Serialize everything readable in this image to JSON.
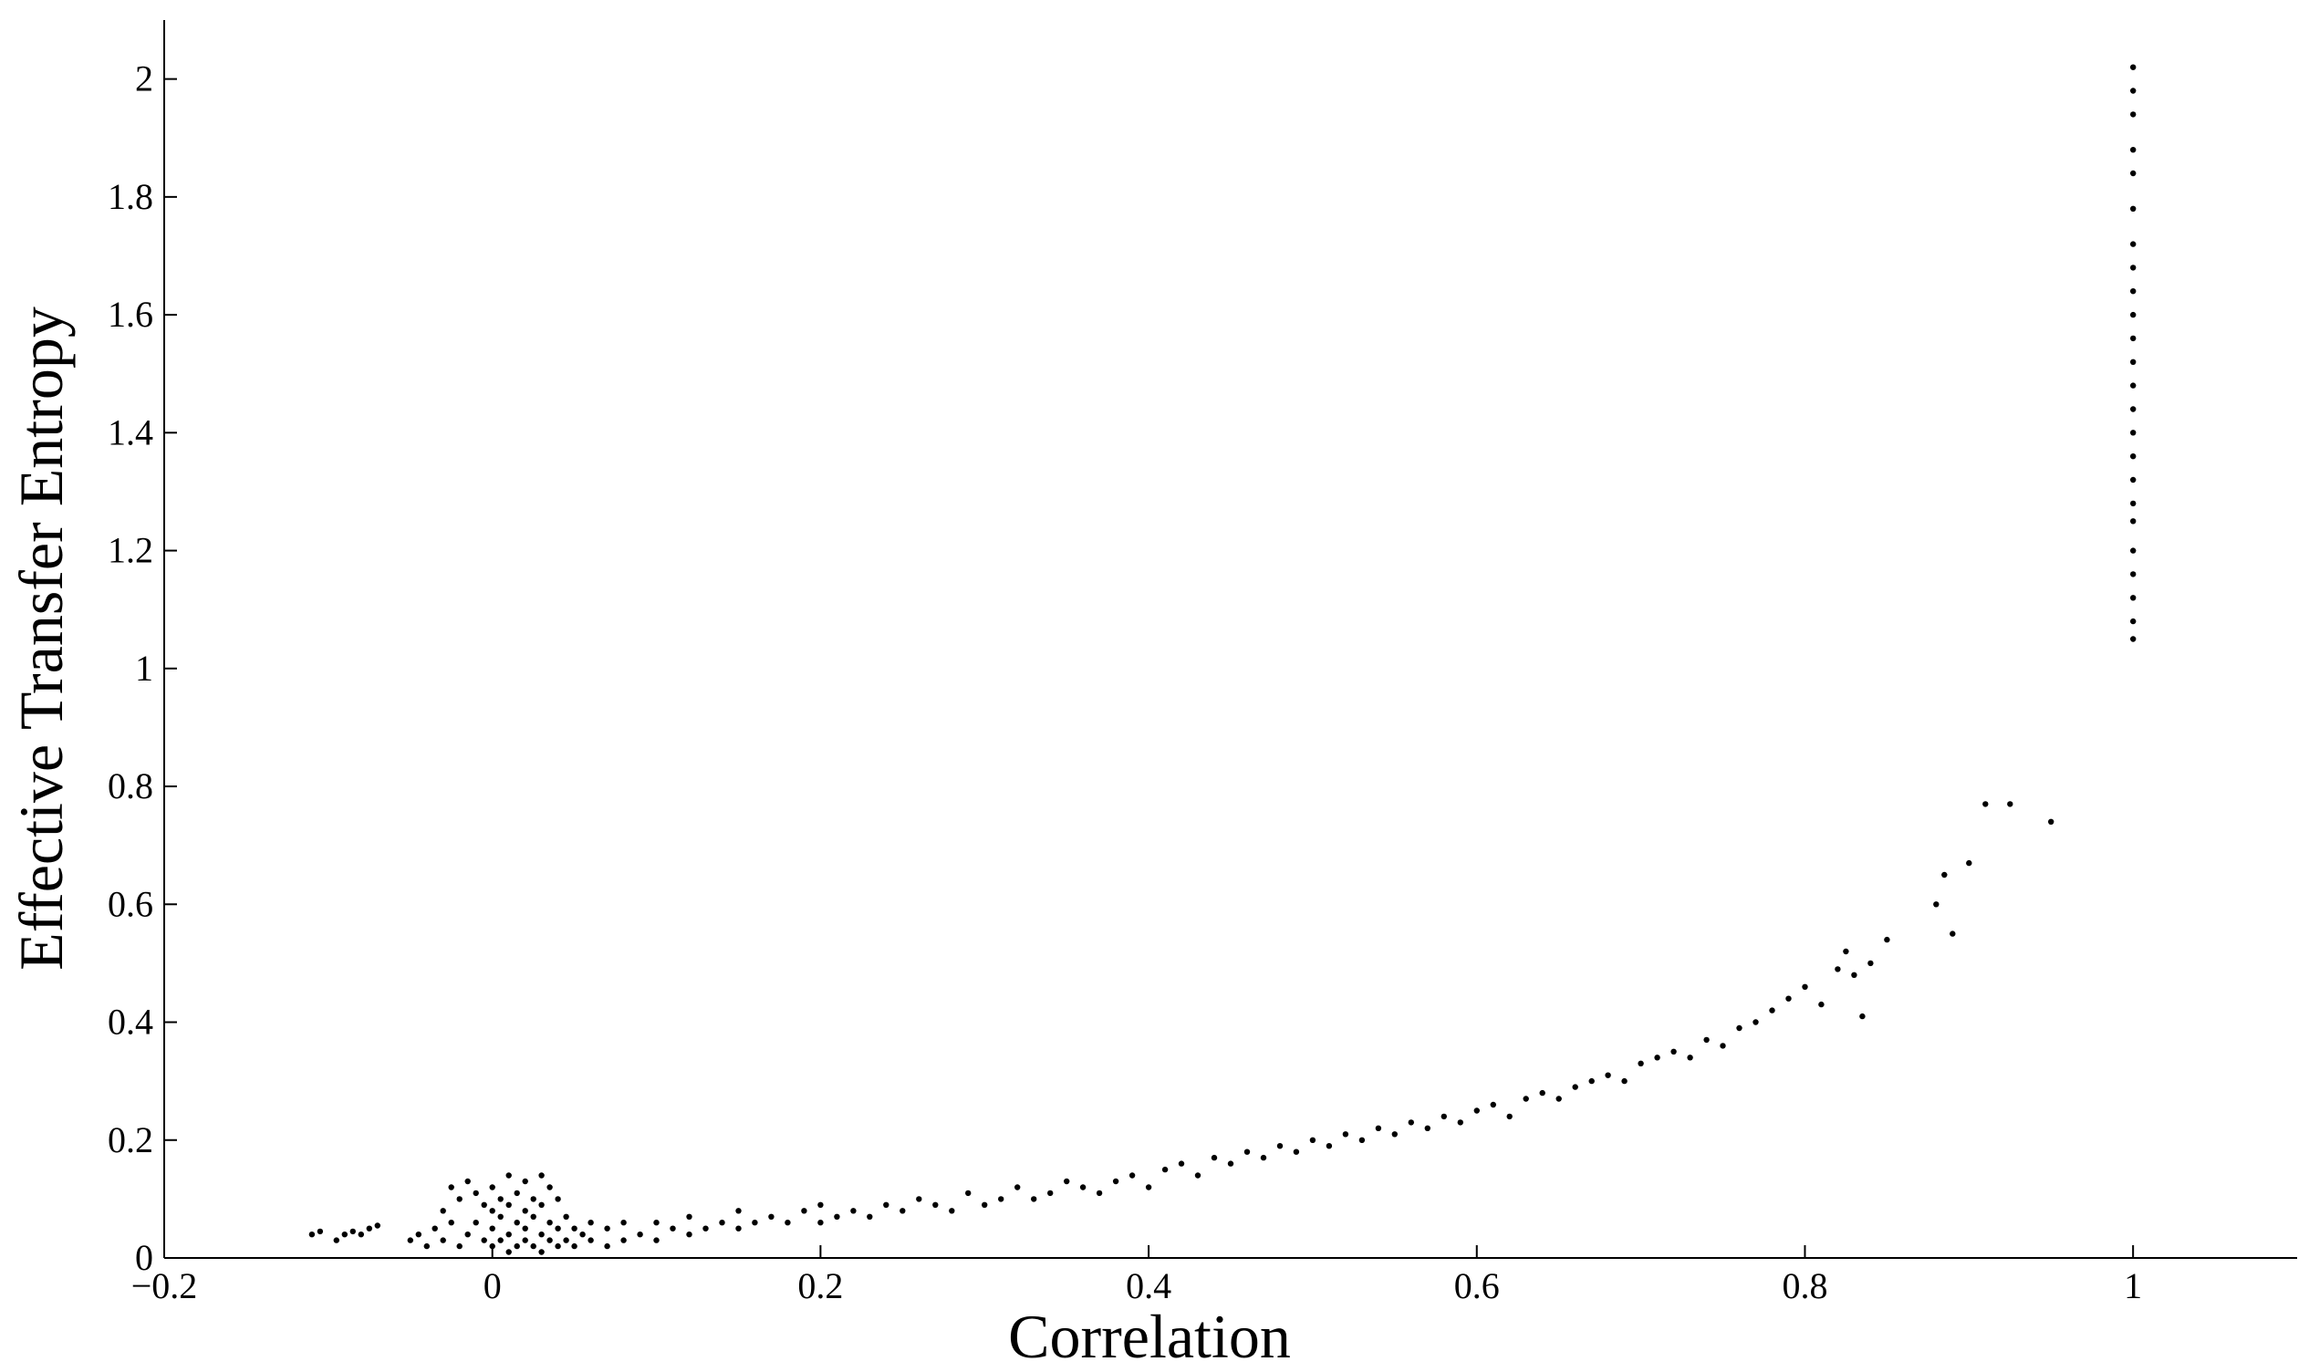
{
  "chart_data": {
    "type": "scatter",
    "xlabel": "Correlation",
    "ylabel": "Effective Transfer Entropy",
    "xlim": [
      -0.2,
      1.1
    ],
    "ylim": [
      0,
      2.1
    ],
    "xticks": [
      -0.2,
      0,
      0.2,
      0.4,
      0.6,
      0.8,
      1
    ],
    "xtick_labels": [
      "−0.2",
      "0",
      "0.2",
      "0.4",
      "0.6",
      "0.8",
      "1"
    ],
    "yticks": [
      0,
      0.2,
      0.4,
      0.6,
      0.8,
      1,
      1.2,
      1.4,
      1.6,
      1.8,
      2
    ],
    "ytick_labels": [
      "0",
      "0.2",
      "0.4",
      "0.6",
      "0.8",
      "1",
      "1.2",
      "1.4",
      "1.6",
      "1.8",
      "2"
    ],
    "grid": false,
    "legend": "none",
    "marker_color": "#000000",
    "series": [
      {
        "points": [
          [
            -0.11,
            0.04
          ],
          [
            -0.105,
            0.045
          ],
          [
            -0.095,
            0.03
          ],
          [
            -0.09,
            0.04
          ],
          [
            -0.085,
            0.045
          ],
          [
            -0.08,
            0.04
          ],
          [
            -0.075,
            0.05
          ],
          [
            -0.07,
            0.055
          ],
          [
            -0.05,
            0.03
          ],
          [
            -0.045,
            0.04
          ],
          [
            -0.04,
            0.02
          ],
          [
            -0.035,
            0.05
          ],
          [
            -0.03,
            0.03
          ],
          [
            -0.03,
            0.08
          ],
          [
            -0.025,
            0.06
          ],
          [
            -0.025,
            0.12
          ],
          [
            -0.02,
            0.02
          ],
          [
            -0.02,
            0.1
          ],
          [
            -0.015,
            0.04
          ],
          [
            -0.015,
            0.13
          ],
          [
            -0.01,
            0.06
          ],
          [
            -0.01,
            0.11
          ],
          [
            -0.005,
            0.03
          ],
          [
            -0.005,
            0.09
          ],
          [
            0.0,
            0.02
          ],
          [
            0.0,
            0.05
          ],
          [
            0.0,
            0.08
          ],
          [
            0.0,
            0.12
          ],
          [
            0.005,
            0.03
          ],
          [
            0.005,
            0.07
          ],
          [
            0.005,
            0.1
          ],
          [
            0.01,
            0.01
          ],
          [
            0.01,
            0.04
          ],
          [
            0.01,
            0.09
          ],
          [
            0.01,
            0.14
          ],
          [
            0.015,
            0.02
          ],
          [
            0.015,
            0.06
          ],
          [
            0.015,
            0.11
          ],
          [
            0.02,
            0.03
          ],
          [
            0.02,
            0.05
          ],
          [
            0.02,
            0.08
          ],
          [
            0.02,
            0.13
          ],
          [
            0.025,
            0.02
          ],
          [
            0.025,
            0.07
          ],
          [
            0.025,
            0.1
          ],
          [
            0.03,
            0.01
          ],
          [
            0.03,
            0.04
          ],
          [
            0.03,
            0.09
          ],
          [
            0.03,
            0.14
          ],
          [
            0.035,
            0.03
          ],
          [
            0.035,
            0.06
          ],
          [
            0.035,
            0.12
          ],
          [
            0.04,
            0.02
          ],
          [
            0.04,
            0.05
          ],
          [
            0.04,
            0.1
          ],
          [
            0.045,
            0.03
          ],
          [
            0.045,
            0.07
          ],
          [
            0.05,
            0.02
          ],
          [
            0.05,
            0.05
          ],
          [
            0.055,
            0.04
          ],
          [
            0.06,
            0.03
          ],
          [
            0.06,
            0.06
          ],
          [
            0.07,
            0.02
          ],
          [
            0.07,
            0.05
          ],
          [
            0.08,
            0.03
          ],
          [
            0.08,
            0.06
          ],
          [
            0.09,
            0.04
          ],
          [
            0.1,
            0.03
          ],
          [
            0.1,
            0.06
          ],
          [
            0.11,
            0.05
          ],
          [
            0.12,
            0.04
          ],
          [
            0.12,
            0.07
          ],
          [
            0.13,
            0.05
          ],
          [
            0.14,
            0.06
          ],
          [
            0.15,
            0.05
          ],
          [
            0.15,
            0.08
          ],
          [
            0.16,
            0.06
          ],
          [
            0.17,
            0.07
          ],
          [
            0.18,
            0.06
          ],
          [
            0.19,
            0.08
          ],
          [
            0.2,
            0.06
          ],
          [
            0.2,
            0.09
          ],
          [
            0.21,
            0.07
          ],
          [
            0.22,
            0.08
          ],
          [
            0.23,
            0.07
          ],
          [
            0.24,
            0.09
          ],
          [
            0.25,
            0.08
          ],
          [
            0.26,
            0.1
          ],
          [
            0.27,
            0.09
          ],
          [
            0.28,
            0.08
          ],
          [
            0.29,
            0.11
          ],
          [
            0.3,
            0.09
          ],
          [
            0.31,
            0.1
          ],
          [
            0.32,
            0.12
          ],
          [
            0.33,
            0.1
          ],
          [
            0.34,
            0.11
          ],
          [
            0.35,
            0.13
          ],
          [
            0.36,
            0.12
          ],
          [
            0.37,
            0.11
          ],
          [
            0.38,
            0.13
          ],
          [
            0.39,
            0.14
          ],
          [
            0.4,
            0.12
          ],
          [
            0.41,
            0.15
          ],
          [
            0.42,
            0.16
          ],
          [
            0.43,
            0.14
          ],
          [
            0.44,
            0.17
          ],
          [
            0.45,
            0.16
          ],
          [
            0.46,
            0.18
          ],
          [
            0.47,
            0.17
          ],
          [
            0.48,
            0.19
          ],
          [
            0.49,
            0.18
          ],
          [
            0.5,
            0.2
          ],
          [
            0.51,
            0.19
          ],
          [
            0.52,
            0.21
          ],
          [
            0.53,
            0.2
          ],
          [
            0.54,
            0.22
          ],
          [
            0.55,
            0.21
          ],
          [
            0.56,
            0.23
          ],
          [
            0.57,
            0.22
          ],
          [
            0.58,
            0.24
          ],
          [
            0.59,
            0.23
          ],
          [
            0.6,
            0.25
          ],
          [
            0.61,
            0.26
          ],
          [
            0.62,
            0.24
          ],
          [
            0.63,
            0.27
          ],
          [
            0.64,
            0.28
          ],
          [
            0.65,
            0.27
          ],
          [
            0.66,
            0.29
          ],
          [
            0.67,
            0.3
          ],
          [
            0.68,
            0.31
          ],
          [
            0.69,
            0.3
          ],
          [
            0.7,
            0.33
          ],
          [
            0.71,
            0.34
          ],
          [
            0.72,
            0.35
          ],
          [
            0.73,
            0.34
          ],
          [
            0.74,
            0.37
          ],
          [
            0.75,
            0.36
          ],
          [
            0.76,
            0.39
          ],
          [
            0.77,
            0.4
          ],
          [
            0.78,
            0.42
          ],
          [
            0.79,
            0.44
          ],
          [
            0.8,
            0.46
          ],
          [
            0.81,
            0.43
          ],
          [
            0.82,
            0.49
          ],
          [
            0.825,
            0.52
          ],
          [
            0.83,
            0.48
          ],
          [
            0.835,
            0.41
          ],
          [
            0.84,
            0.5
          ],
          [
            0.85,
            0.54
          ],
          [
            0.88,
            0.6
          ],
          [
            0.885,
            0.65
          ],
          [
            0.89,
            0.55
          ],
          [
            0.9,
            0.67
          ],
          [
            0.91,
            0.77
          ],
          [
            0.925,
            0.77
          ],
          [
            0.95,
            0.74
          ],
          [
            1.0,
            1.05
          ],
          [
            1.0,
            1.08
          ],
          [
            1.0,
            1.12
          ],
          [
            1.0,
            1.16
          ],
          [
            1.0,
            1.2
          ],
          [
            1.0,
            1.25
          ],
          [
            1.0,
            1.28
          ],
          [
            1.0,
            1.32
          ],
          [
            1.0,
            1.36
          ],
          [
            1.0,
            1.4
          ],
          [
            1.0,
            1.44
          ],
          [
            1.0,
            1.48
          ],
          [
            1.0,
            1.52
          ],
          [
            1.0,
            1.56
          ],
          [
            1.0,
            1.6
          ],
          [
            1.0,
            1.64
          ],
          [
            1.0,
            1.68
          ],
          [
            1.0,
            1.72
          ],
          [
            1.0,
            1.78
          ],
          [
            1.0,
            1.84
          ],
          [
            1.0,
            1.88
          ],
          [
            1.0,
            1.94
          ],
          [
            1.0,
            1.98
          ],
          [
            1.0,
            2.02
          ]
        ]
      }
    ]
  }
}
